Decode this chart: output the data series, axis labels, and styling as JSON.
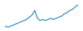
{
  "y": [
    3,
    2.5,
    3,
    3.5,
    4,
    4.5,
    5,
    5.5,
    6,
    7,
    8,
    10,
    6.5,
    5.5,
    6,
    5.5,
    6,
    6.5,
    6,
    6.5,
    7,
    7.5,
    8.5,
    9,
    10,
    10.5,
    11.5,
    12.5
  ],
  "line_color": "#2b8cc4",
  "line_width": 1.0,
  "background_color": "#ffffff",
  "ylim": [
    1.5,
    14
  ]
}
